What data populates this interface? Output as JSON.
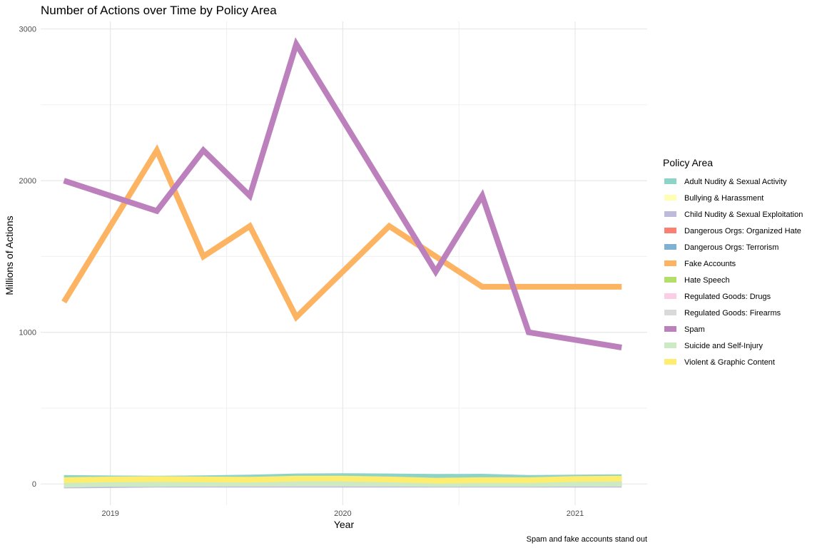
{
  "chart_data": {
    "type": "line",
    "title": "Number of Actions over Time by Policy Area",
    "xlabel": "Year",
    "ylabel": "Millions of Actions",
    "caption": "Spam and fake accounts stand out",
    "xlim": [
      2018.7,
      2021.31
    ],
    "ylim": [
      -140,
      3050
    ],
    "x_ticks": [
      2019,
      2020,
      2021
    ],
    "x_tick_labels": [
      "2019",
      "2020",
      "2021"
    ],
    "y_ticks": [
      0,
      1000,
      2000,
      3000
    ],
    "y_tick_labels": [
      "0",
      "1000",
      "2000",
      "3000"
    ],
    "legend_title": "Policy Area",
    "legend_position": "right",
    "x": [
      2018.8,
      2019.0,
      2019.2,
      2019.4,
      2019.6,
      2019.8,
      2020.0,
      2020.2,
      2020.4,
      2020.6,
      2020.8,
      2021.0,
      2021.2
    ],
    "series": [
      {
        "name": "Adult Nudity & Sexual Activity",
        "color": "#8dd3c7",
        "values": [
          40,
          37,
          35,
          38,
          42,
          50,
          52,
          50,
          47,
          48,
          40,
          42,
          45
        ]
      },
      {
        "name": "Bullying & Harassment",
        "color": "#ffffb3",
        "values": [
          3,
          3,
          3,
          3,
          3,
          4,
          4,
          4,
          4,
          4,
          4,
          4,
          4
        ]
      },
      {
        "name": "Child Nudity & Sexual Exploitation",
        "color": "#bebada",
        "values": [
          -10,
          -8,
          -5,
          -5,
          -5,
          -5,
          -5,
          -5,
          -5,
          -5,
          -5,
          -5,
          -5
        ]
      },
      {
        "name": "Dangerous Orgs: Organized Hate",
        "color": "#fb8072",
        "values": [
          1,
          1,
          1,
          1,
          1,
          1,
          1,
          1,
          1,
          1,
          1,
          1,
          1
        ]
      },
      {
        "name": "Dangerous Orgs: Terrorism",
        "color": "#80b1d3",
        "values": [
          2,
          2,
          2,
          2,
          2,
          2,
          2,
          2,
          2,
          2,
          2,
          2,
          2
        ]
      },
      {
        "name": "Fake Accounts",
        "color": "#fdb462",
        "values": [
          1200,
          1700,
          2200,
          1500,
          1700,
          1100,
          1400,
          1700,
          1500,
          1300,
          1300,
          1300,
          1300
        ]
      },
      {
        "name": "Hate Speech",
        "color": "#b3de69",
        "values": [
          3,
          4,
          4,
          5,
          5,
          6,
          6,
          6,
          5,
          5,
          5,
          5,
          5
        ]
      },
      {
        "name": "Regulated Goods: Drugs",
        "color": "#fccde5",
        "values": [
          1,
          1,
          1,
          1,
          1,
          1,
          1,
          1,
          1,
          1,
          1,
          1,
          1
        ]
      },
      {
        "name": "Regulated Goods: Firearms",
        "color": "#d9d9d9",
        "values": [
          -5,
          2,
          8,
          3,
          2,
          2,
          2,
          2,
          2,
          2,
          2,
          2,
          2
        ]
      },
      {
        "name": "Spam",
        "color": "#bc80bd",
        "values": [
          2000,
          1900,
          1800,
          2200,
          1900,
          2900,
          2400,
          1900,
          1400,
          1900,
          1000,
          950,
          900
        ]
      },
      {
        "name": "Suicide and Self-Injury",
        "color": "#ccebc5",
        "values": [
          -5,
          0,
          0,
          2,
          3,
          5,
          5,
          3,
          0,
          0,
          0,
          2,
          3
        ]
      },
      {
        "name": "Violent & Graphic Content",
        "color": "#ffed6f",
        "values": [
          25,
          30,
          32,
          30,
          28,
          35,
          35,
          30,
          22,
          25,
          25,
          33,
          35
        ]
      }
    ]
  }
}
